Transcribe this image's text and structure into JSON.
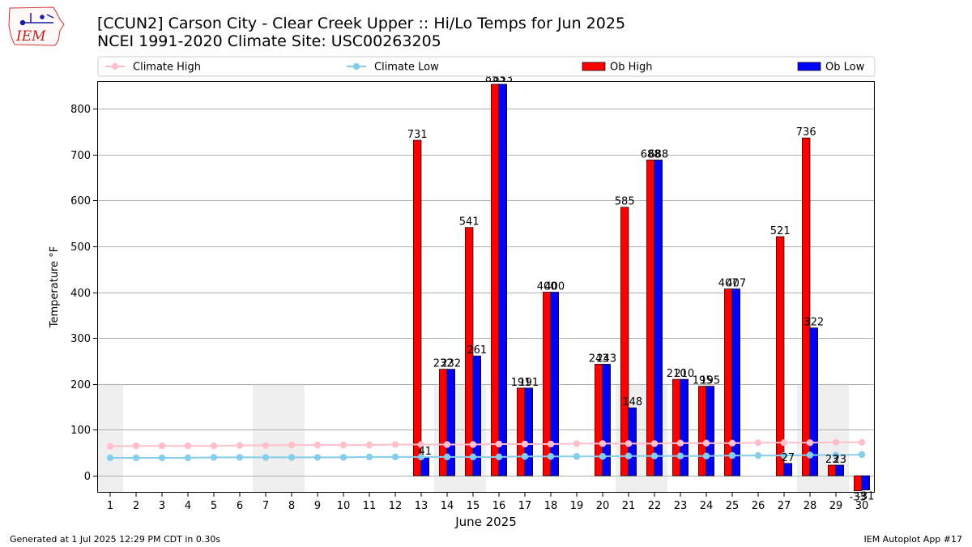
{
  "header": {
    "title": "[CCUN2] Carson City - Clear Creek Upper :: Hi/Lo Temps for Jun 2025",
    "subtitle": "NCEI 1991-2020 Climate Site: USC00263205",
    "logo_text": "IEM"
  },
  "footer": {
    "generated": "Generated at 1 Jul 2025 12:29 PM CDT in 0.30s",
    "app": "IEM Autoplot App #17"
  },
  "chart_data": {
    "type": "bar",
    "xlabel": "June 2025",
    "ylabel": "Temperature °F",
    "ylim": [
      -37,
      860
    ],
    "yticks": [
      0,
      100,
      200,
      300,
      400,
      500,
      600,
      700,
      800
    ],
    "grid": true,
    "legend_placement": "top",
    "categories": [
      "1",
      "2",
      "3",
      "4",
      "5",
      "6",
      "7",
      "8",
      "9",
      "10",
      "11",
      "12",
      "13",
      "14",
      "15",
      "16",
      "17",
      "18",
      "19",
      "20",
      "21",
      "22",
      "23",
      "24",
      "25",
      "26",
      "27",
      "28",
      "29",
      "30"
    ],
    "weekend_shading_days": [
      1,
      7,
      8,
      14,
      15,
      21,
      22,
      28,
      29
    ],
    "series": [
      {
        "name": "Climate High",
        "kind": "line",
        "color": "#ffc0cb",
        "values": [
          64,
          65,
          65,
          65,
          65,
          66,
          66,
          67,
          67,
          67,
          67,
          68,
          68,
          68,
          68,
          69,
          69,
          69,
          70,
          70,
          70,
          70,
          71,
          71,
          71,
          72,
          72,
          72,
          73,
          73
        ]
      },
      {
        "name": "Climate Low",
        "kind": "line",
        "color": "#87ceeb",
        "values": [
          39,
          39,
          39,
          39,
          40,
          40,
          40,
          40,
          40,
          40,
          41,
          41,
          41,
          41,
          41,
          41,
          42,
          42,
          42,
          42,
          43,
          43,
          43,
          43,
          44,
          44,
          44,
          45,
          45,
          46
        ]
      },
      {
        "name": "Ob High",
        "kind": "bar",
        "color": "#ff0000",
        "values": [
          null,
          null,
          null,
          null,
          null,
          null,
          null,
          null,
          null,
          null,
          null,
          null,
          731,
          232,
          541,
          853,
          191,
          400,
          null,
          243,
          585,
          688,
          210,
          195,
          407,
          null,
          521,
          736,
          23,
          -33
        ]
      },
      {
        "name": "Ob Low",
        "kind": "bar",
        "color": "#0000ff",
        "values": [
          null,
          null,
          null,
          null,
          null,
          null,
          null,
          null,
          null,
          null,
          null,
          null,
          41,
          232,
          261,
          853,
          191,
          400,
          null,
          243,
          148,
          688,
          210,
          195,
          407,
          null,
          27,
          322,
          23,
          -31
        ]
      }
    ]
  }
}
